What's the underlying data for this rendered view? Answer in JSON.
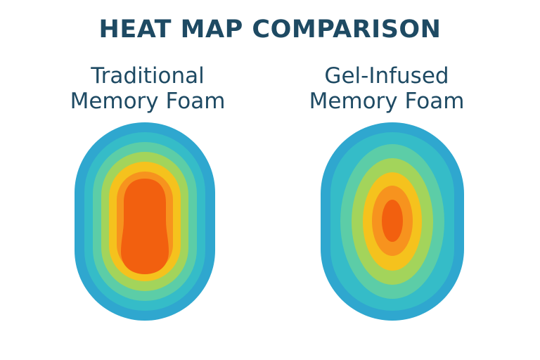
{
  "title": "HEAT MAP COMPARISON",
  "panels": [
    {
      "label_line1": "Traditional",
      "label_line2": "Memory Foam"
    },
    {
      "label_line1": "Gel-Infused",
      "label_line2": "Memory Foam"
    }
  ],
  "colors": {
    "title_text": "#1e4a63",
    "heat_rings": [
      "#2fa7cf",
      "#35bcc8",
      "#5ccda7",
      "#a3d45b",
      "#f5c21d",
      "#f7931e",
      "#f2600f"
    ]
  }
}
